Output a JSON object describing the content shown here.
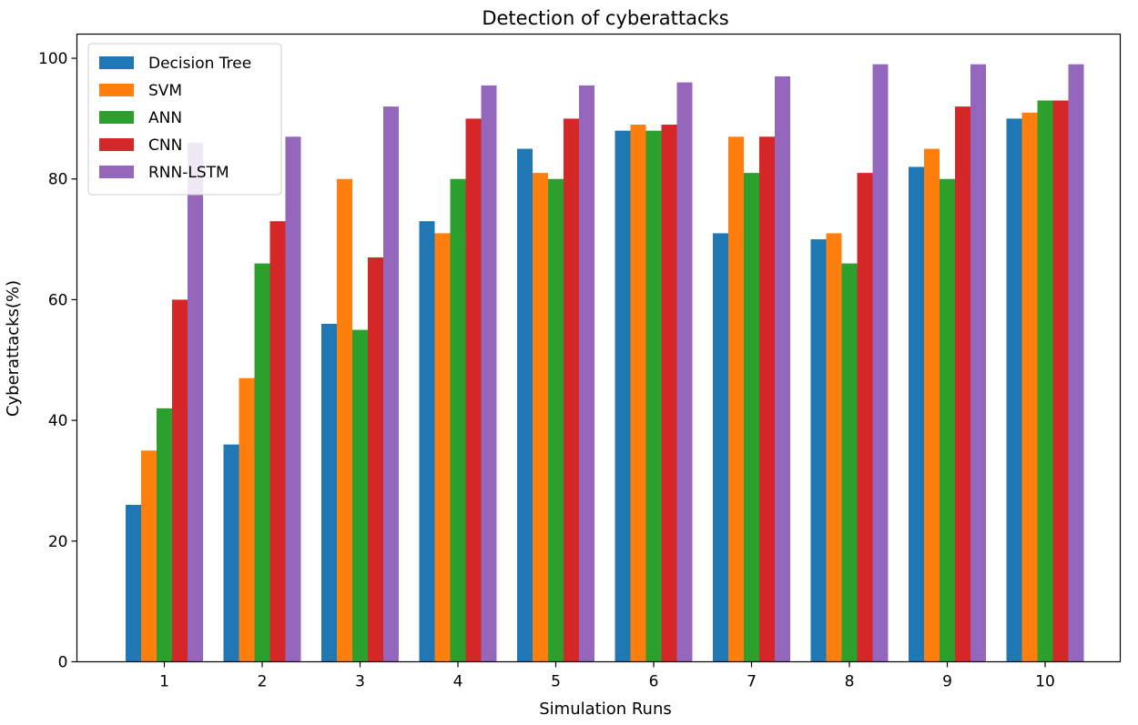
{
  "chart_data": {
    "type": "bar",
    "title": "Detection of cyberattacks",
    "xlabel": "Simulation Runs",
    "ylabel": "Cyberattacks(%)",
    "ylim": [
      0,
      104
    ],
    "yticks": [
      0,
      20,
      40,
      60,
      80,
      100
    ],
    "grid": false,
    "legend_position": "top-left",
    "categories": [
      "1",
      "2",
      "3",
      "4",
      "5",
      "6",
      "7",
      "8",
      "9",
      "10"
    ],
    "series": [
      {
        "name": "Decision Tree",
        "color": "#1f77b4",
        "values": [
          26,
          36,
          56,
          73,
          85,
          88,
          71,
          70,
          82,
          90
        ]
      },
      {
        "name": "SVM",
        "color": "#ff7f0e",
        "values": [
          35,
          47,
          80,
          71,
          81,
          89,
          87,
          71,
          85,
          91
        ]
      },
      {
        "name": "ANN",
        "color": "#2ca02c",
        "values": [
          42,
          66,
          55,
          80,
          80,
          88,
          81,
          66,
          80,
          93
        ]
      },
      {
        "name": "CNN",
        "color": "#d62728",
        "values": [
          60,
          73,
          67,
          90,
          90,
          89,
          87,
          81,
          92,
          93
        ]
      },
      {
        "name": "RNN-LSTM",
        "color": "#9467bd",
        "values": [
          86,
          87,
          92,
          95.5,
          95.5,
          96,
          97,
          99,
          99,
          99
        ]
      }
    ]
  }
}
